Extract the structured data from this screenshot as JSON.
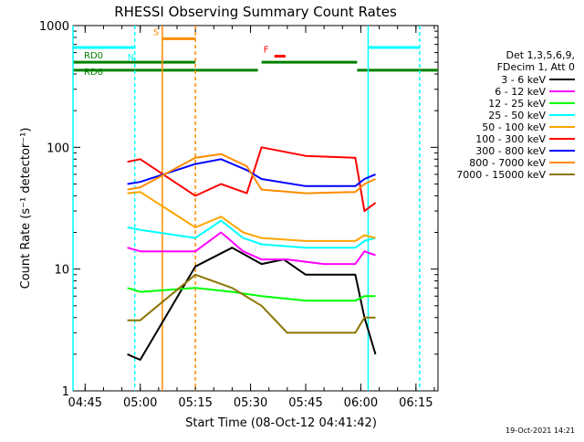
{
  "chart_data": {
    "type": "line",
    "title": "RHESSI Observing Summary Count Rates",
    "xlabel": "Start Time (08-Oct-12 04:41:42)",
    "ylabel": "Count Rate (s⁻¹ detector⁻¹)",
    "yscale": "log",
    "ylim": [
      1,
      1000
    ],
    "xlim": [
      "04:41:42",
      "06:21:00"
    ],
    "x_ticks": [
      "04:45",
      "05:00",
      "05:15",
      "05:30",
      "05:45",
      "06:00",
      "06:15"
    ],
    "y_ticks": [
      "1",
      "10",
      "100",
      "1000"
    ],
    "legend_header": [
      "Det 1,3,5,6,9,",
      "FDecim 1, Att 0"
    ],
    "legend_position": "right",
    "timestamp": "19-Oct-2021 14:21",
    "series": [
      {
        "name": "3 - 6 keV",
        "color": "#000000",
        "x": [
          "04:56:30",
          "05:00:00",
          "05:15:00",
          "05:25:00",
          "05:33:00",
          "05:39:00",
          "05:45:00",
          "05:50:00",
          "05:58:30",
          "06:01:00",
          "06:04:00"
        ],
        "values": [
          2,
          1.8,
          10.5,
          15,
          11,
          12,
          9,
          9,
          9,
          4,
          2
        ]
      },
      {
        "name": "6 - 12 keV",
        "color": "#ff00ff",
        "x": [
          "04:56:30",
          "05:00:00",
          "05:15:00",
          "05:22:00",
          "05:28:00",
          "05:33:00",
          "05:40:00",
          "05:50:00",
          "05:58:30",
          "06:01:00",
          "06:04:00"
        ],
        "values": [
          15,
          14,
          14,
          20,
          14,
          12,
          12,
          11,
          11,
          14,
          13
        ]
      },
      {
        "name": "12 - 25 keV",
        "color": "#00ff00",
        "x": [
          "04:56:30",
          "05:00:00",
          "05:15:00",
          "05:25:00",
          "05:33:00",
          "05:45:00",
          "05:58:30",
          "06:01:00",
          "06:04:00"
        ],
        "values": [
          7,
          6.5,
          7,
          6.5,
          6,
          5.5,
          5.5,
          6,
          6
        ]
      },
      {
        "name": "25 - 50 keV",
        "color": "#00ffff",
        "x": [
          "04:56:30",
          "05:00:00",
          "05:15:00",
          "05:22:00",
          "05:28:00",
          "05:33:00",
          "05:45:00",
          "05:58:30",
          "06:01:00",
          "06:04:00"
        ],
        "values": [
          22,
          21,
          18,
          25,
          18,
          16,
          15,
          15,
          17,
          18
        ]
      },
      {
        "name": "50 - 100 keV",
        "color": "#ffa500",
        "x": [
          "04:56:30",
          "05:00:00",
          "05:15:00",
          "05:22:00",
          "05:28:00",
          "05:33:00",
          "05:45:00",
          "05:58:30",
          "06:01:00",
          "06:04:00"
        ],
        "values": [
          42,
          43,
          22,
          27,
          20,
          18,
          17,
          17,
          19,
          18
        ]
      },
      {
        "name": "100 - 300 keV",
        "color": "#ff0000",
        "x": [
          "04:56:30",
          "05:00:00",
          "05:15:00",
          "05:22:00",
          "05:29:00",
          "05:33:00",
          "05:45:00",
          "05:58:30",
          "06:01:00",
          "06:04:00"
        ],
        "values": [
          76,
          80,
          40,
          50,
          42,
          100,
          85,
          82,
          30,
          35
        ]
      },
      {
        "name": "300 - 800 keV",
        "color": "#0000ff",
        "x": [
          "04:56:30",
          "05:00:00",
          "05:15:00",
          "05:22:00",
          "05:29:00",
          "05:33:00",
          "05:45:00",
          "05:58:30",
          "06:01:00",
          "06:04:00"
        ],
        "values": [
          50,
          52,
          73,
          80,
          65,
          55,
          48,
          48,
          55,
          60
        ]
      },
      {
        "name": "800 - 7000 keV",
        "color": "#ff8c00",
        "x": [
          "04:56:30",
          "05:00:00",
          "05:15:00",
          "05:22:00",
          "05:29:00",
          "05:33:00",
          "05:45:00",
          "05:58:30",
          "06:01:00",
          "06:04:00"
        ],
        "values": [
          45,
          47,
          82,
          88,
          70,
          45,
          42,
          43,
          50,
          55
        ]
      },
      {
        "name": "7000 - 15000 keV",
        "color": "#8b7500",
        "x": [
          "04:56:30",
          "05:00:00",
          "05:15:00",
          "05:25:00",
          "05:33:00",
          "05:40:00",
          "05:50:00",
          "05:58:30",
          "06:01:00",
          "06:04:00"
        ],
        "values": [
          3.8,
          3.8,
          9,
          7,
          5,
          3,
          3,
          3,
          4,
          4
        ]
      }
    ],
    "annotations": [
      {
        "label": "RD0",
        "color": "#008000",
        "bars": [
          [
            "04:41:42",
            "05:15:00"
          ],
          [
            "05:33:00",
            "05:59:00"
          ]
        ]
      },
      {
        "label": "RD6",
        "color": "#008000",
        "bars": [
          [
            "04:41:42",
            "05:15:00"
          ],
          [
            "05:15:00",
            "05:32:00"
          ],
          [
            "05:59:00",
            "06:21:00"
          ]
        ]
      },
      {
        "label": "N",
        "color": "#00ffff",
        "bars": [
          [
            "04:41:42",
            "04:58:30"
          ],
          [
            "06:02:00",
            "06:16:00"
          ]
        ]
      },
      {
        "label": "S",
        "color": "#ff8c00",
        "bars": [
          [
            "05:06:00",
            "05:15:00"
          ]
        ]
      },
      {
        "label": "F",
        "color": "#ff0000",
        "bars": [
          [
            "05:36:30",
            "05:39:30"
          ]
        ]
      }
    ]
  }
}
